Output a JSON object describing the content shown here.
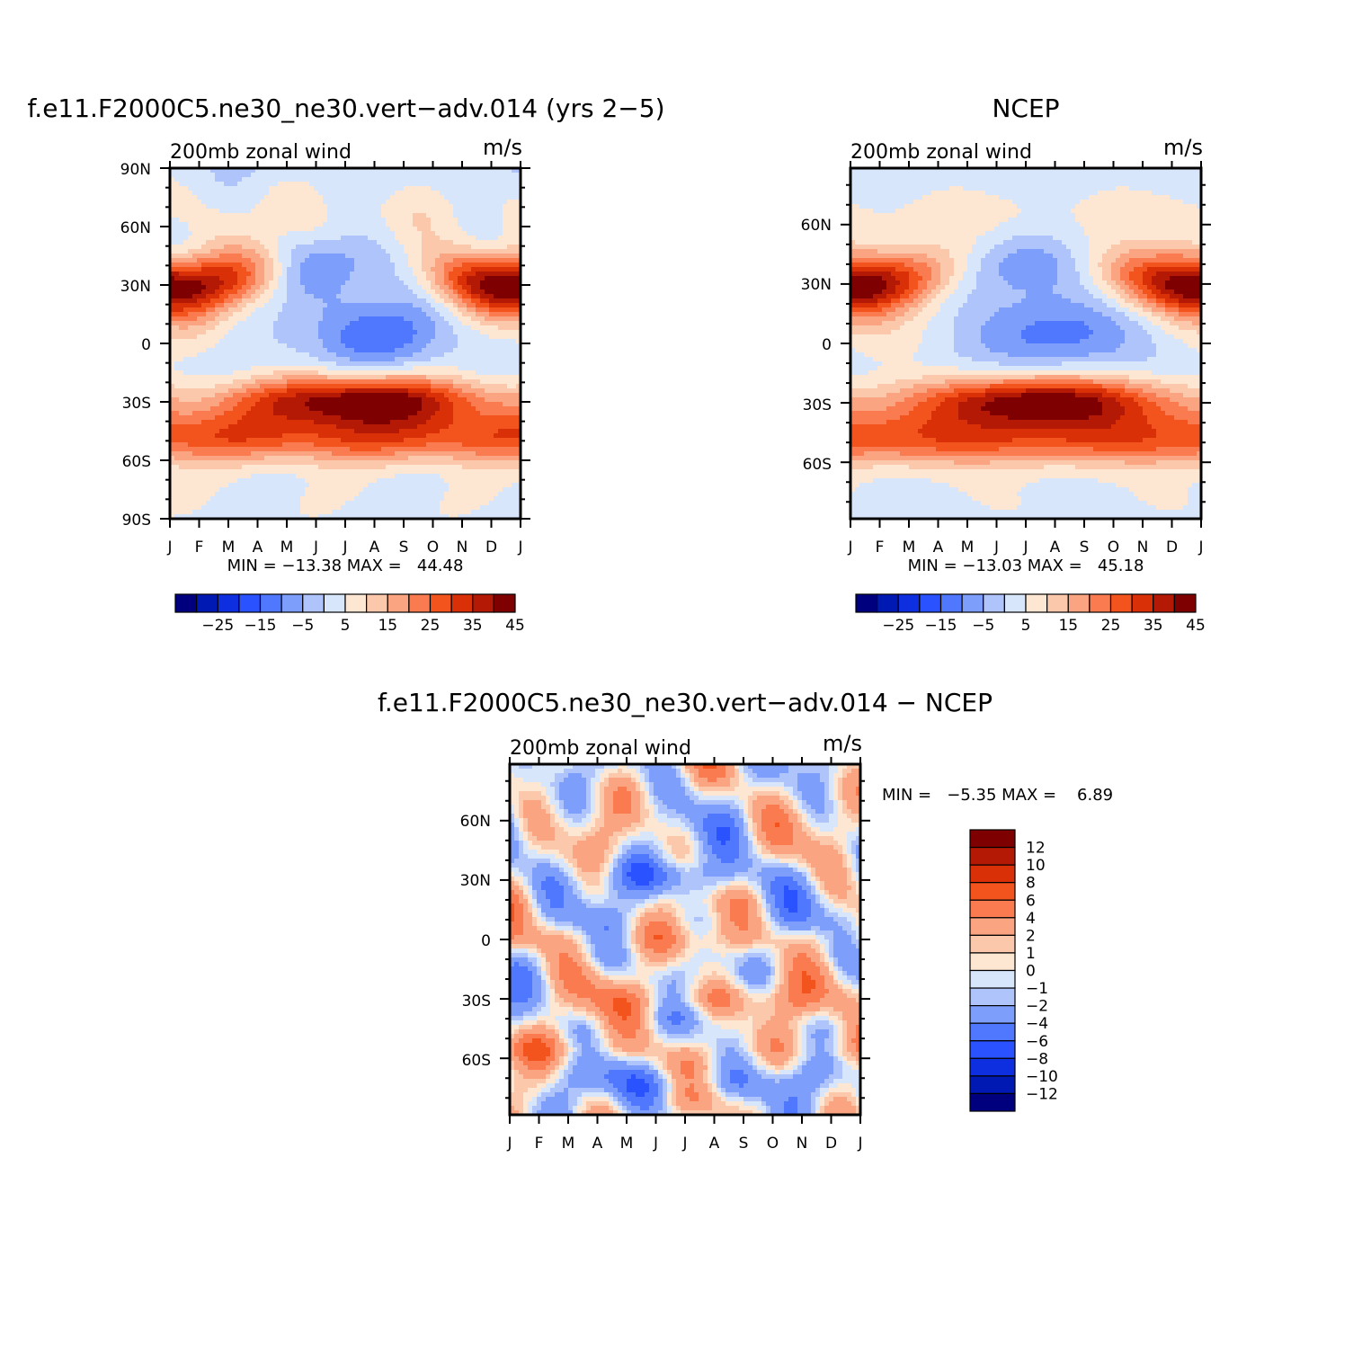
{
  "panels": [
    {
      "id": "model",
      "title": "f.e11.F2000C5.ne30_ne30.vert−adv.014 (yrs 2−5)",
      "left_label": "200mb zonal wind",
      "right_label": "m/s",
      "min_max_text": "MIN = −13.38 MAX =   44.48",
      "lat_ticks": [
        "90N",
        "60N",
        "30N",
        "0",
        "30S",
        "60S",
        "90S"
      ],
      "lat_range": [
        -90,
        90
      ]
    },
    {
      "id": "ncep",
      "title": "NCEP",
      "left_label": "200mb zonal wind",
      "right_label": "m/s",
      "min_max_text": "MIN = −13.03 MAX =   45.18",
      "lat_ticks": [
        "60N",
        "30N",
        "0",
        "30S",
        "60S"
      ],
      "lat_range": [
        -88.5,
        88.5
      ]
    },
    {
      "id": "diff",
      "title": "f.e11.F2000C5.ne30_ne30.vert−adv.014 − NCEP",
      "left_label": "200mb zonal wind",
      "right_label": "m/s",
      "min_max_text": "MIN =   −5.35 MAX =    6.89",
      "lat_ticks": [
        "60N",
        "30N",
        "0",
        "30S",
        "60S"
      ],
      "lat_range": [
        -88.5,
        88.5
      ]
    }
  ],
  "month_labels": [
    "J",
    "F",
    "M",
    "A",
    "M",
    "J",
    "J",
    "A",
    "S",
    "O",
    "N",
    "D",
    "J"
  ],
  "field_colorbar": {
    "labels": [
      "−25",
      "−15",
      "−5",
      "5",
      "15",
      "25",
      "35",
      "45"
    ],
    "levels": [
      -30,
      -25,
      -20,
      -15,
      -10,
      -5,
      0,
      5,
      10,
      15,
      20,
      25,
      30,
      35,
      40,
      45
    ],
    "colors": [
      "#00007f",
      "#0019b2",
      "#0d2fe0",
      "#2a52ff",
      "#4f78ff",
      "#7e9efc",
      "#aec4fb",
      "#d8e6fc",
      "#fee7d2",
      "#fcc8ac",
      "#fba482",
      "#f97b4f",
      "#f3541e",
      "#d93008",
      "#b31904",
      "#7f0000"
    ]
  },
  "diff_colorbar": {
    "labels": [
      "12",
      "10",
      "8",
      "6",
      "4",
      "2",
      "1",
      "0",
      "−1",
      "−2",
      "−4",
      "−6",
      "−8",
      "−10",
      "−12"
    ],
    "levels": [
      -12,
      -10,
      -8,
      -6,
      -4,
      -2,
      -1,
      0,
      1,
      2,
      4,
      6,
      8,
      10,
      12
    ],
    "colors": [
      "#00007f",
      "#0019b2",
      "#0d2fe0",
      "#2a52ff",
      "#4f78ff",
      "#7e9efc",
      "#aec4fb",
      "#d8e6fc",
      "#fee7d2",
      "#fcc8ac",
      "#fba482",
      "#f97b4f",
      "#f3541e",
      "#d93008",
      "#b31904",
      "#7f0000"
    ]
  },
  "chart_data": [
    {
      "type": "heatmap",
      "title": "f.e11.F2000C5.ne30_ne30.vert−adv.014 (yrs 2−5)",
      "variable": "200mb zonal wind",
      "units": "m/s",
      "x": [
        "J",
        "F",
        "M",
        "A",
        "M",
        "J",
        "J",
        "A",
        "S",
        "O",
        "N",
        "D",
        "J"
      ],
      "y_ticks": [
        "90N",
        "60N",
        "30N",
        "0",
        "30S",
        "60S",
        "90S"
      ],
      "ylim": [
        -90,
        90
      ],
      "min": -13.38,
      "max": 44.48,
      "features": [
        {
          "name": "NH subtropical jet",
          "lat": 30,
          "peak": 44,
          "months": [
            "Dec",
            "Jan",
            "Feb",
            "Mar"
          ]
        },
        {
          "name": "tropical easterlies",
          "lat": 5,
          "peak": -13,
          "months": [
            "Jul",
            "Aug"
          ]
        },
        {
          "name": "SH jet",
          "lat": -30,
          "peak": 42,
          "months": [
            "Jun",
            "Jul",
            "Aug"
          ]
        },
        {
          "name": "SH polar-front jet",
          "lat": -48,
          "peak": 30,
          "months": [
            "all"
          ]
        }
      ]
    },
    {
      "type": "heatmap",
      "title": "NCEP",
      "variable": "200mb zonal wind",
      "units": "m/s",
      "x": [
        "J",
        "F",
        "M",
        "A",
        "M",
        "J",
        "J",
        "A",
        "S",
        "O",
        "N",
        "D",
        "J"
      ],
      "y_ticks": [
        "60N",
        "30N",
        "0",
        "30S",
        "60S"
      ],
      "ylim": [
        -88.5,
        88.5
      ],
      "min": -13.03,
      "max": 45.18
    },
    {
      "type": "heatmap",
      "title": "f.e11.F2000C5.ne30_ne30.vert−adv.014 − NCEP",
      "variable": "200mb zonal wind",
      "units": "m/s",
      "x": [
        "J",
        "F",
        "M",
        "A",
        "M",
        "J",
        "J",
        "A",
        "S",
        "O",
        "N",
        "D",
        "J"
      ],
      "y_ticks": [
        "60N",
        "30N",
        "0",
        "30S",
        "60S"
      ],
      "ylim": [
        -88.5,
        88.5
      ],
      "min": -5.35,
      "max": 6.89
    }
  ]
}
